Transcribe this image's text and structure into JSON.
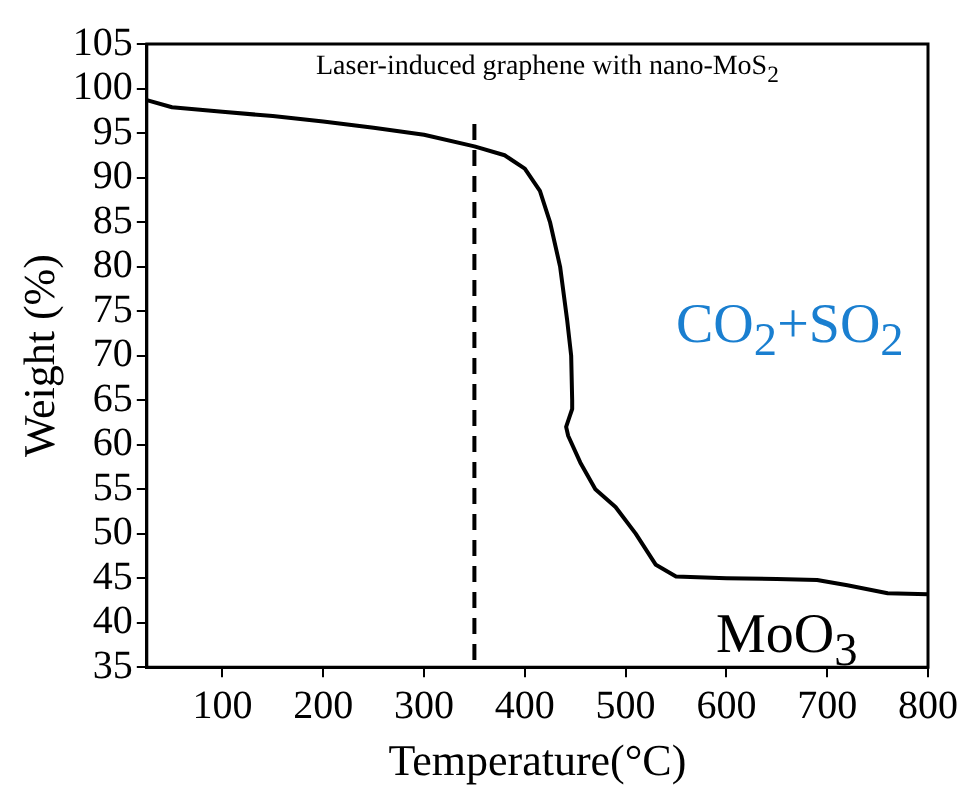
{
  "chart_data": {
    "type": "line",
    "xlabel": "Temperature(°C)",
    "ylabel": "Weight (%)",
    "annotations": [
      "Laser-induced graphene with nano-MoS$_{2}$",
      "CO$_{2}$+SO$_{2}$",
      "MoO$_{3}$"
    ],
    "xlim": [
      25,
      800
    ],
    "xticks": [
      100,
      200,
      300,
      400,
      500,
      600,
      700,
      800
    ],
    "ylim": [
      35,
      105
    ],
    "yticks": [
      35,
      40,
      45,
      50,
      55,
      60,
      65,
      70,
      75,
      80,
      85,
      90,
      95,
      100,
      105
    ],
    "grid": false,
    "legend": false,
    "marker": "none",
    "line_style": "solid",
    "ref_lines": [
      {
        "axis": "x",
        "value": 350,
        "color": "#000000",
        "line_style": "dashed"
      }
    ],
    "series": [
      {
        "color": "#000000",
        "x": [
          25,
          50,
          100,
          150,
          200,
          250,
          300,
          350,
          380,
          400,
          415,
          425,
          435,
          442,
          446,
          447,
          447,
          444,
          441,
          443,
          455,
          470,
          490,
          510,
          530,
          550,
          600,
          650,
          690,
          720,
          760,
          800
        ],
        "values": [
          98.7,
          97.9,
          97.4,
          96.9,
          96.3,
          95.6,
          94.8,
          93.5,
          92.5,
          91,
          88.5,
          85,
          80,
          74,
          70,
          65,
          64,
          63,
          62,
          61,
          58,
          55,
          53,
          50,
          46.5,
          45.2,
          45,
          44.9,
          44.8,
          44.2,
          43.3,
          43.2
        ]
      }
    ]
  }
}
